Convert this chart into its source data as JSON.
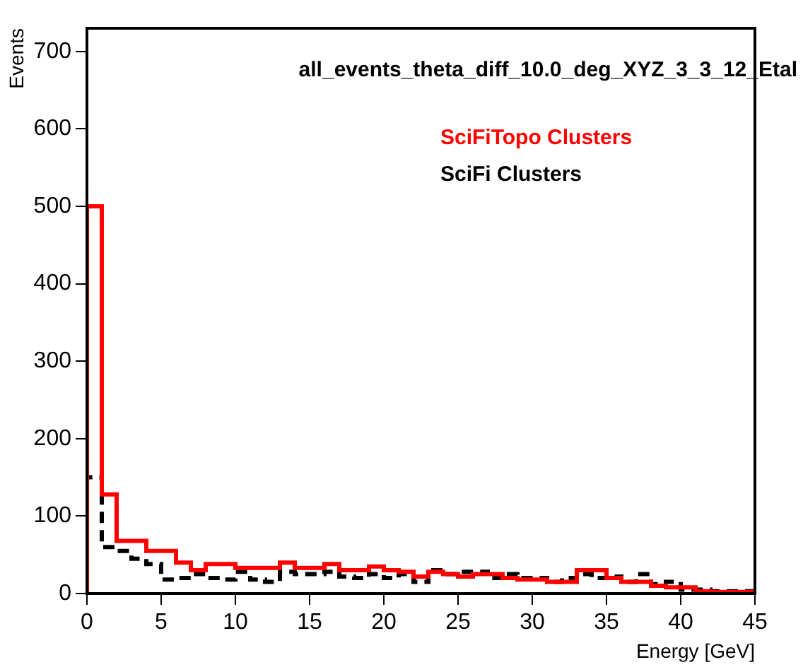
{
  "chart_data": {
    "type": "histogram",
    "title": "all_events_theta_diff_10.0_deg_XYZ_3_3_12_Etal",
    "xlabel": "Energy [GeV]",
    "ylabel": "Events",
    "bins": [
      0,
      1,
      2,
      3,
      4,
      5,
      6,
      7,
      8,
      9,
      10,
      11,
      12,
      13,
      14,
      15,
      16,
      17,
      18,
      19,
      20,
      21,
      22,
      23,
      24,
      25,
      26,
      27,
      28,
      29,
      30,
      31,
      32,
      33,
      34,
      35,
      36,
      37,
      38,
      39,
      40,
      41,
      42,
      43,
      44,
      45
    ],
    "series": [
      {
        "name": "SciFiTopo Clusters",
        "color": "#ff0000",
        "line_style": "solid",
        "values": [
          500,
          128,
          68,
          68,
          55,
          55,
          40,
          30,
          38,
          38,
          33,
          33,
          33,
          40,
          33,
          33,
          38,
          30,
          30,
          35,
          30,
          28,
          22,
          28,
          25,
          22,
          25,
          25,
          20,
          18,
          18,
          15,
          15,
          30,
          30,
          20,
          15,
          15,
          10,
          8,
          8,
          3,
          2,
          2,
          2
        ]
      },
      {
        "name": "SciFi Clusters",
        "color": "#000000",
        "line_style": "dashed",
        "values": [
          150,
          60,
          55,
          45,
          38,
          18,
          20,
          25,
          20,
          18,
          28,
          18,
          15,
          28,
          25,
          25,
          28,
          22,
          20,
          25,
          20,
          25,
          15,
          30,
          25,
          28,
          28,
          20,
          25,
          20,
          20,
          15,
          20,
          25,
          20,
          22,
          15,
          25,
          12,
          15,
          5,
          5,
          3,
          3,
          3
        ]
      }
    ],
    "xlim": [
      0,
      45
    ],
    "xticks": [
      0,
      5,
      10,
      15,
      20,
      25,
      30,
      35,
      40,
      45
    ],
    "ylim": [
      0,
      730
    ],
    "yticks": [
      0,
      100,
      200,
      300,
      400,
      500,
      600,
      700
    ],
    "grid": false,
    "legend": "top right"
  }
}
